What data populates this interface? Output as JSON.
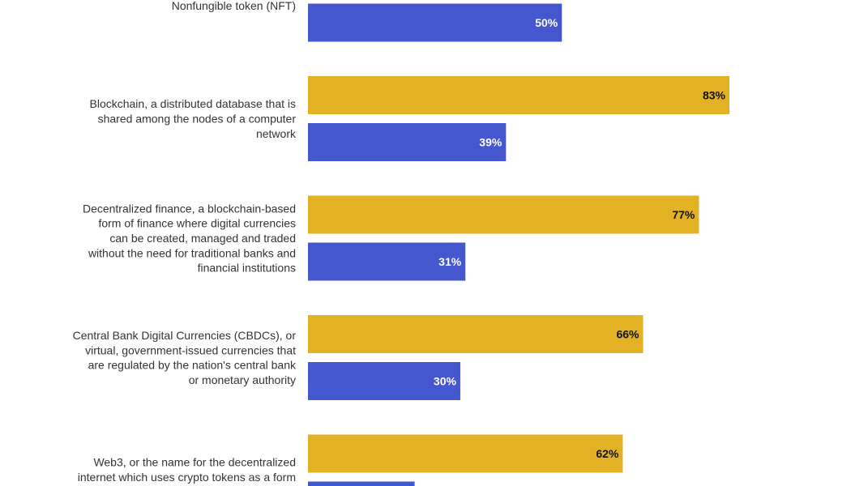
{
  "chart_data": {
    "type": "bar",
    "orientation": "horizontal",
    "grouped": true,
    "xlim": [
      0,
      100
    ],
    "grid": false,
    "colors": {
      "series_1": "#E3B224",
      "series_2": "#4457CF"
    },
    "categories": [
      {
        "lines": [
          "Nonfungible token (NFT)"
        ]
      },
      {
        "lines": [
          "Blockchain, a distributed database that is",
          "shared among the nodes of a computer",
          "network"
        ]
      },
      {
        "lines": [
          "Decentralized finance, a blockchain-based",
          "form of finance where digital currencies",
          "can be created, managed and traded",
          "without the need for traditional banks and",
          "financial institutions"
        ]
      },
      {
        "lines": [
          "Central Bank Digital Currencies (CBDCs), or",
          "virtual, government-issued currencies that",
          "are regulated by the nation's central bank",
          "or monetary authority"
        ]
      },
      {
        "lines": [
          "Web3, or the name for the decentralized",
          "internet which uses crypto tokens as a form"
        ]
      }
    ],
    "series": [
      {
        "values": [
          null,
          83,
          77,
          66,
          62
        ],
        "labels": [
          "",
          "83%",
          "77%",
          "66%",
          "62%"
        ]
      },
      {
        "values": [
          50,
          39,
          31,
          30,
          21
        ],
        "labels": [
          "50%",
          "39%",
          "31%",
          "30%",
          ""
        ]
      }
    ]
  }
}
